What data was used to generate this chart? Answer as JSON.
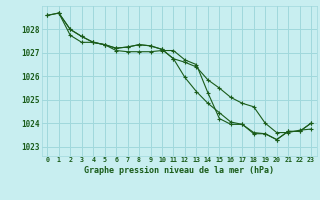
{
  "xlabel": "Graphe pression niveau de la mer (hPa)",
  "background_color": "#c8eef0",
  "grid_color": "#a0d8dc",
  "line_color": "#1a5c1a",
  "xlim": [
    -0.5,
    23.5
  ],
  "ylim": [
    1022.6,
    1029.0
  ],
  "yticks": [
    1023,
    1024,
    1025,
    1026,
    1027,
    1028
  ],
  "xticks": [
    0,
    1,
    2,
    3,
    4,
    5,
    6,
    7,
    8,
    9,
    10,
    11,
    12,
    13,
    14,
    15,
    16,
    17,
    18,
    19,
    20,
    21,
    22,
    23
  ],
  "series1_x": [
    0,
    1,
    2,
    3,
    4,
    5,
    6,
    7,
    8,
    9,
    10,
    11,
    12,
    13,
    14,
    15,
    16,
    17,
    18,
    19,
    20,
    21,
    22,
    23
  ],
  "series1_y": [
    1028.6,
    1028.7,
    1028.0,
    1027.7,
    1027.45,
    1027.35,
    1027.2,
    1027.25,
    1027.35,
    1027.3,
    1027.15,
    1026.75,
    1026.6,
    1026.4,
    1025.85,
    1025.5,
    1025.1,
    1024.85,
    1024.7,
    1024.0,
    1023.6,
    1023.6,
    1023.7,
    1023.75
  ],
  "series2_x": [
    0,
    1,
    2,
    3,
    4,
    5,
    6,
    7,
    8,
    9,
    10,
    11,
    12,
    13,
    14,
    15,
    16,
    17,
    18,
    19,
    20,
    21,
    22,
    23
  ],
  "series2_y": [
    1028.6,
    1028.7,
    1028.0,
    1027.7,
    1027.45,
    1027.35,
    1027.2,
    1027.25,
    1027.35,
    1027.3,
    1027.15,
    1026.75,
    1025.95,
    1025.35,
    1024.85,
    1024.45,
    1024.05,
    1023.95,
    1023.55,
    1023.55,
    1023.3,
    1023.65,
    1023.65,
    1024.0
  ],
  "series3_x": [
    1,
    2,
    3,
    4,
    5,
    6,
    7,
    8,
    9,
    10,
    11,
    12,
    13,
    14,
    15,
    16,
    17,
    18,
    19,
    20,
    21,
    22,
    23
  ],
  "series3_y": [
    1028.7,
    1027.75,
    1027.45,
    1027.45,
    1027.35,
    1027.1,
    1027.05,
    1027.05,
    1027.05,
    1027.1,
    1027.1,
    1026.7,
    1026.5,
    1025.3,
    1024.2,
    1023.95,
    1023.95,
    1023.6,
    1023.55,
    1023.3,
    1023.65,
    1023.65,
    1024.0
  ]
}
